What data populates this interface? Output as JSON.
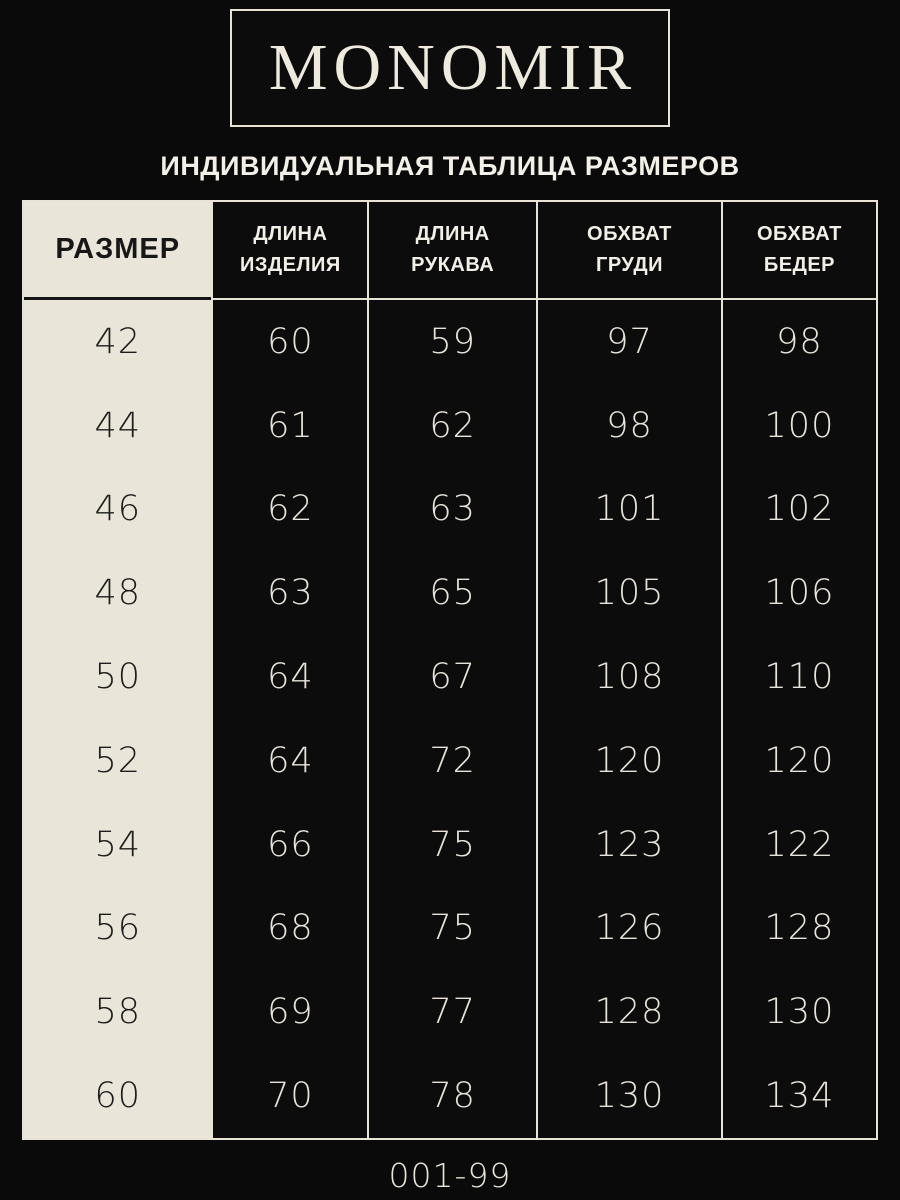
{
  "brand": "MONOMIR",
  "subtitle": "ИНДИВИДУАЛЬНАЯ ТАБЛИЦА РАЗМЕРОВ",
  "footer_code": "001-99",
  "colors": {
    "background": "#0a0a0a",
    "cell_black": "#0c0c0c",
    "cream": "#e9e5d9",
    "light_text": "#e8e4da",
    "dark_text": "#1c1c1c",
    "border_light": "#e7e3d7"
  },
  "table": {
    "headers": [
      "РАЗМЕР",
      "ДЛИНА ИЗДЕЛИЯ",
      "ДЛИНА РУКАВА",
      "ОБХВАТ ГРУДИ",
      "ОБХВАТ БЕДЕР"
    ],
    "rows": [
      {
        "size": "42",
        "values": [
          "60",
          "59",
          "97",
          "98"
        ]
      },
      {
        "size": "44",
        "values": [
          "61",
          "62",
          "98",
          "100"
        ]
      },
      {
        "size": "46",
        "values": [
          "62",
          "63",
          "101",
          "102"
        ]
      },
      {
        "size": "48",
        "values": [
          "63",
          "65",
          "105",
          "106"
        ]
      },
      {
        "size": "50",
        "values": [
          "64",
          "67",
          "108",
          "110"
        ]
      },
      {
        "size": "52",
        "values": [
          "64",
          "72",
          "120",
          "120"
        ]
      },
      {
        "size": "54",
        "values": [
          "66",
          "75",
          "123",
          "122"
        ]
      },
      {
        "size": "56",
        "values": [
          "68",
          "75",
          "126",
          "128"
        ]
      },
      {
        "size": "58",
        "values": [
          "69",
          "77",
          "128",
          "130"
        ]
      },
      {
        "size": "60",
        "values": [
          "70",
          "78",
          "130",
          "134"
        ]
      }
    ]
  }
}
